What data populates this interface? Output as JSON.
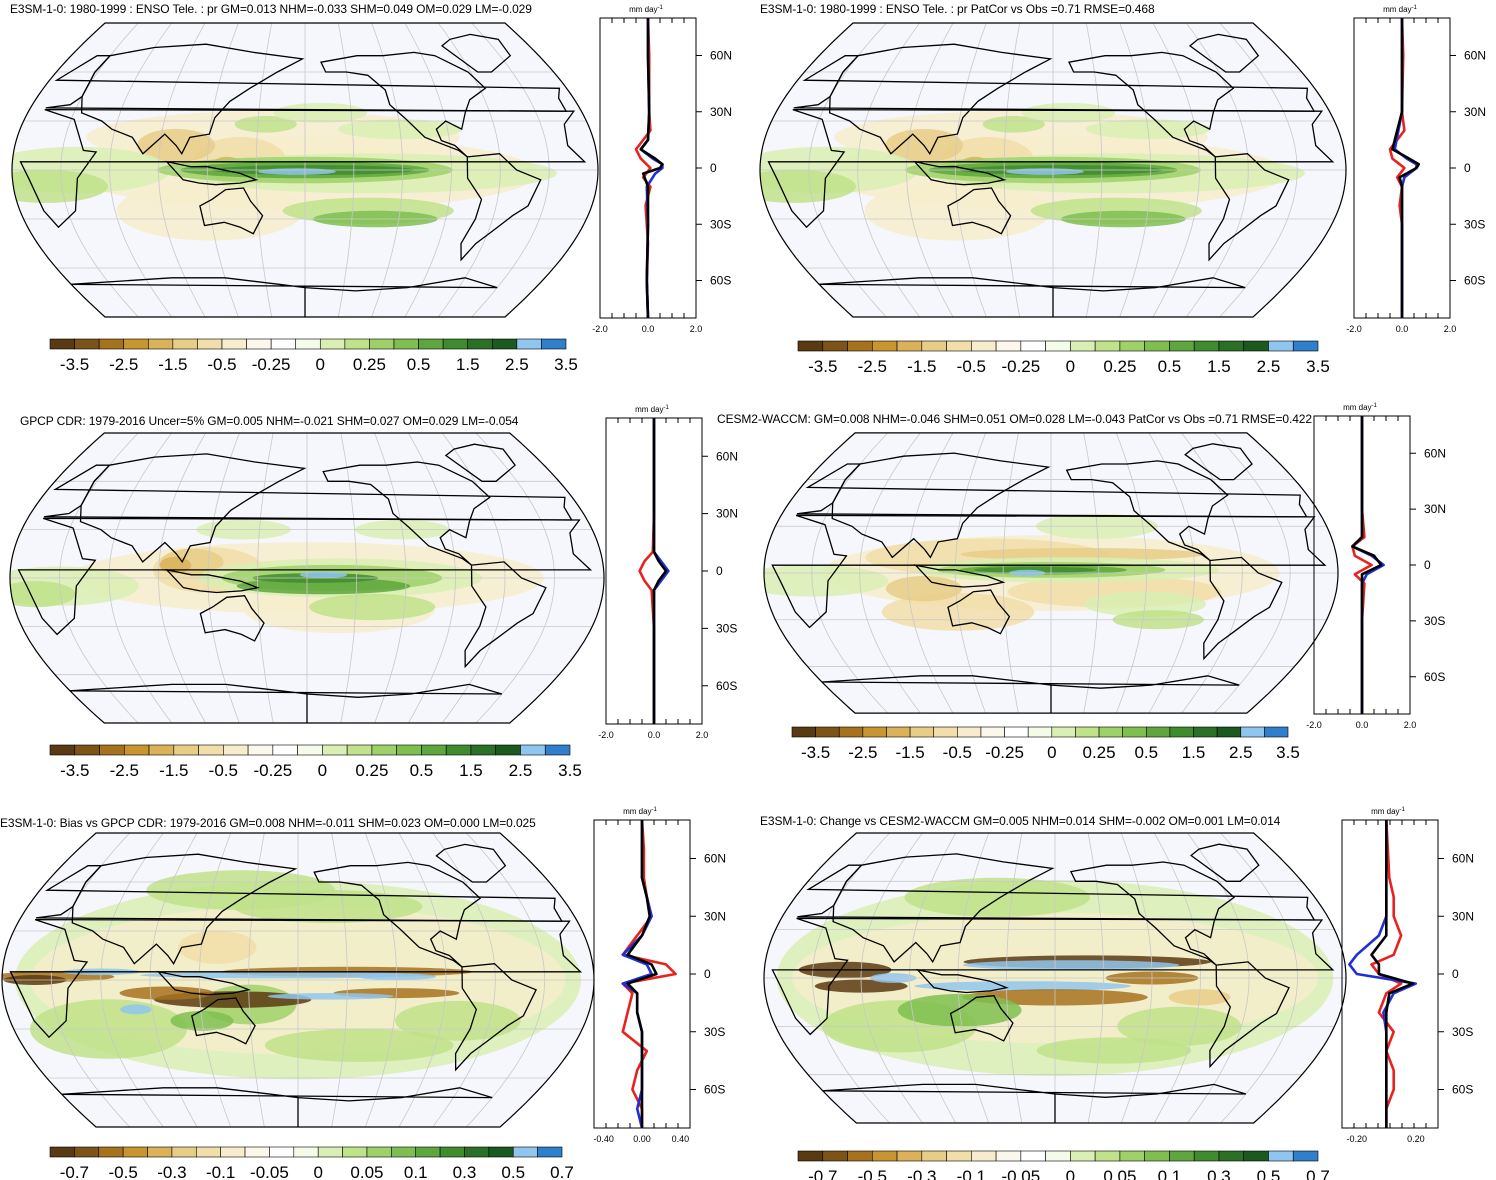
{
  "units": "mm day",
  "units_exp": "-1",
  "lat_ticks": [
    "60N",
    "30N",
    "0",
    "30S",
    "60S"
  ],
  "lat_values": [
    60,
    30,
    0,
    -30,
    -60
  ],
  "colorbars": {
    "a": {
      "labels": [
        "-3.5",
        "-2.5",
        "-1.5",
        "-0.5",
        "-0.25",
        "0",
        "0.25",
        "0.5",
        "1.5",
        "2.5",
        "3.5"
      ],
      "colors": [
        "#5a3a12",
        "#7d5418",
        "#a6721e",
        "#c9952f",
        "#dbb25a",
        "#e8cd87",
        "#f1dea8",
        "#f7edcd",
        "#fbf7ea",
        "#ffffff",
        "#f4fbe9",
        "#d9efb3",
        "#bfe28a",
        "#9fd169",
        "#7fbf50",
        "#5ea63d",
        "#3f8c2f",
        "#2a7026",
        "#1b5a1e",
        "#8fc6ef",
        "#2f7fcc"
      ]
    },
    "b": {
      "labels": [
        "-0.7",
        "-0.5",
        "-0.3",
        "-0.1",
        "-0.05",
        "0",
        "0.05",
        "0.1",
        "0.3",
        "0.5",
        "0.7"
      ],
      "colors": [
        "#5a3a12",
        "#7d5418",
        "#a6721e",
        "#c9952f",
        "#dbb25a",
        "#e8cd87",
        "#f1dea8",
        "#f7edcd",
        "#fbf7ea",
        "#ffffff",
        "#f4fbe9",
        "#d9efb3",
        "#bfe28a",
        "#9fd169",
        "#7fbf50",
        "#5ea63d",
        "#3f8c2f",
        "#2a7026",
        "#1b5a1e",
        "#8fc6ef",
        "#2f7fcc"
      ]
    }
  },
  "line_colors": {
    "red": "#e8231f",
    "blue": "#1f2fd6",
    "black": "#000000"
  },
  "panels": [
    {
      "id": "p1",
      "title": "E3SM-1-0: 1980-1999 : ENSO Tele. : pr GM=0.013 NHM=-0.033 SHM=0.049 OM=0.029 LM=-0.029",
      "cbar": "a",
      "xticks": [
        "-2.0",
        "0.0",
        "2.0"
      ],
      "xrange": [
        -2,
        2
      ],
      "style": "enso",
      "zonal": {
        "red": [
          [
            80,
            0
          ],
          [
            60,
            0.05
          ],
          [
            40,
            0.05
          ],
          [
            30,
            0.05
          ],
          [
            20,
            0.1
          ],
          [
            10,
            -0.5
          ],
          [
            5,
            -0.3
          ],
          [
            0,
            0.1
          ],
          [
            -5,
            -0.2
          ],
          [
            -10,
            0.1
          ],
          [
            -20,
            -0.1
          ],
          [
            -30,
            -0.05
          ],
          [
            -40,
            0
          ],
          [
            -60,
            -0.05
          ],
          [
            -80,
            0
          ]
        ],
        "blue": [
          [
            80,
            0
          ],
          [
            60,
            0
          ],
          [
            30,
            0.05
          ],
          [
            15,
            0
          ],
          [
            10,
            -0.3
          ],
          [
            5,
            0.2
          ],
          [
            2,
            0.6
          ],
          [
            0,
            0.6
          ],
          [
            -3,
            0.3
          ],
          [
            -10,
            -0.05
          ],
          [
            -30,
            0
          ],
          [
            -60,
            -0.05
          ],
          [
            -80,
            0
          ]
        ],
        "black": [
          [
            80,
            0
          ],
          [
            60,
            0
          ],
          [
            30,
            0.05
          ],
          [
            15,
            0
          ],
          [
            10,
            -0.3
          ],
          [
            5,
            0.3
          ],
          [
            2,
            0.6
          ],
          [
            0,
            0.5
          ],
          [
            -3,
            -0.2
          ],
          [
            -10,
            0
          ],
          [
            -30,
            0
          ],
          [
            -60,
            -0.05
          ],
          [
            -80,
            0
          ]
        ]
      }
    },
    {
      "id": "p2",
      "title": "E3SM-1-0: 1980-1999 : ENSO Tele. : pr PatCor vs Obs =0.71 RMSE=0.468",
      "cbar": "a",
      "xticks": [
        "-2.0",
        "0.0",
        "2.0"
      ],
      "xrange": [
        -2,
        2
      ],
      "style": "enso",
      "zonal": {
        "red": [
          [
            80,
            0
          ],
          [
            60,
            0.05
          ],
          [
            30,
            0
          ],
          [
            20,
            0.1
          ],
          [
            10,
            -0.5
          ],
          [
            5,
            -0.4
          ],
          [
            0,
            0.1
          ],
          [
            -5,
            -0.2
          ],
          [
            -10,
            0
          ],
          [
            -20,
            -0.1
          ],
          [
            -30,
            0
          ],
          [
            -60,
            0
          ],
          [
            -80,
            0
          ]
        ],
        "blue": [
          [
            80,
            0
          ],
          [
            60,
            0
          ],
          [
            30,
            0
          ],
          [
            10,
            -0.3
          ],
          [
            5,
            0.2
          ],
          [
            2,
            0.6
          ],
          [
            0,
            0.6
          ],
          [
            -5,
            0.1
          ],
          [
            -10,
            0
          ],
          [
            -30,
            0
          ],
          [
            -80,
            0
          ]
        ],
        "black": [
          [
            80,
            0
          ],
          [
            60,
            0
          ],
          [
            30,
            0
          ],
          [
            10,
            -0.4
          ],
          [
            5,
            0.3
          ],
          [
            2,
            0.7
          ],
          [
            0,
            0.6
          ],
          [
            -5,
            -0.1
          ],
          [
            -10,
            0
          ],
          [
            -30,
            0
          ],
          [
            -80,
            0
          ]
        ]
      }
    },
    {
      "id": "p3",
      "title": "GPCP CDR: 1979-2016 Uncer=5% GM=0.005 NHM=-0.021 SHM=0.027 OM=0.029 LM=-0.054",
      "cbar": "a",
      "xticks": [
        "-2.0",
        "0.0",
        "2.0"
      ],
      "xrange": [
        -2,
        2
      ],
      "style": "gpcp",
      "zonal": {
        "red": [
          [
            80,
            0
          ],
          [
            60,
            0
          ],
          [
            30,
            0
          ],
          [
            10,
            -0.05
          ],
          [
            5,
            -0.4
          ],
          [
            0,
            -0.6
          ],
          [
            -5,
            -0.4
          ],
          [
            -10,
            -0.1
          ],
          [
            -30,
            0
          ],
          [
            -60,
            0
          ],
          [
            -80,
            0
          ]
        ],
        "blue": [
          [
            80,
            0
          ],
          [
            60,
            0
          ],
          [
            30,
            0
          ],
          [
            10,
            0
          ],
          [
            5,
            0.3
          ],
          [
            0,
            0.6
          ],
          [
            -5,
            0.3
          ],
          [
            -10,
            0
          ],
          [
            -30,
            0
          ],
          [
            -80,
            0
          ]
        ],
        "black": [
          [
            80,
            0
          ],
          [
            60,
            0
          ],
          [
            30,
            0
          ],
          [
            10,
            0
          ],
          [
            5,
            0.2
          ],
          [
            0,
            0.5
          ],
          [
            -5,
            0.2
          ],
          [
            -10,
            0
          ],
          [
            -30,
            0
          ],
          [
            -80,
            0
          ]
        ]
      }
    },
    {
      "id": "p4",
      "title": "CESM2-WACCM: GM=0.008 NHM=-0.046 SHM=0.051 OM=0.028 LM=-0.043 PatCor vs Obs =0.71 RMSE=0.422",
      "cbar": "a",
      "xticks": [
        "-2.0",
        "0.0",
        "2.0"
      ],
      "xrange": [
        -2,
        2
      ],
      "style": "cesm",
      "zonal": {
        "red": [
          [
            80,
            0
          ],
          [
            60,
            0
          ],
          [
            30,
            0
          ],
          [
            15,
            0.1
          ],
          [
            10,
            -0.4
          ],
          [
            5,
            -0.3
          ],
          [
            0,
            0.4
          ],
          [
            -5,
            -0.3
          ],
          [
            -10,
            0.1
          ],
          [
            -30,
            0
          ],
          [
            -60,
            0
          ],
          [
            -80,
            0
          ]
        ],
        "blue": [
          [
            80,
            0
          ],
          [
            60,
            0
          ],
          [
            30,
            0
          ],
          [
            15,
            0
          ],
          [
            10,
            -0.4
          ],
          [
            5,
            0.4
          ],
          [
            0,
            0.9
          ],
          [
            -5,
            0.2
          ],
          [
            -10,
            0
          ],
          [
            -30,
            0
          ],
          [
            -80,
            0
          ]
        ],
        "black": [
          [
            80,
            0
          ],
          [
            60,
            0
          ],
          [
            30,
            0
          ],
          [
            15,
            0
          ],
          [
            10,
            -0.4
          ],
          [
            5,
            0.5
          ],
          [
            0,
            0.8
          ],
          [
            -5,
            0
          ],
          [
            -10,
            0
          ],
          [
            -30,
            0
          ],
          [
            -80,
            0
          ]
        ]
      }
    },
    {
      "id": "p5",
      "title": "E3SM-1-0: Bias vs GPCP CDR: 1979-2016 GM=0.008 NHM=-0.011 SHM=0.023 OM=0.000 LM=0.025",
      "cbar": "b",
      "xticks": [
        "-0.40",
        "0.00",
        "0.40"
      ],
      "xrange": [
        -0.5,
        0.5
      ],
      "style": "bias",
      "zonal": {
        "red": [
          [
            80,
            0
          ],
          [
            65,
            0.02
          ],
          [
            50,
            0.02
          ],
          [
            40,
            0.05
          ],
          [
            30,
            0.1
          ],
          [
            20,
            -0.05
          ],
          [
            10,
            -0.2
          ],
          [
            5,
            0.25
          ],
          [
            0,
            0.35
          ],
          [
            -5,
            -0.2
          ],
          [
            -10,
            -0.1
          ],
          [
            -20,
            -0.15
          ],
          [
            -30,
            -0.2
          ],
          [
            -40,
            0.05
          ],
          [
            -50,
            -0.05
          ],
          [
            -60,
            -0.1
          ],
          [
            -70,
            0
          ],
          [
            -80,
            0
          ]
        ],
        "blue": [
          [
            80,
            0
          ],
          [
            65,
            0
          ],
          [
            50,
            0
          ],
          [
            40,
            0.05
          ],
          [
            30,
            0.1
          ],
          [
            20,
            0
          ],
          [
            10,
            -0.2
          ],
          [
            5,
            0.05
          ],
          [
            0,
            0.1
          ],
          [
            -5,
            -0.2
          ],
          [
            -10,
            -0.05
          ],
          [
            -20,
            -0.05
          ],
          [
            -30,
            0
          ],
          [
            -60,
            0
          ],
          [
            -70,
            -0.05
          ],
          [
            -80,
            0
          ]
        ],
        "black": [
          [
            80,
            0
          ],
          [
            65,
            0
          ],
          [
            50,
            0
          ],
          [
            40,
            0.05
          ],
          [
            30,
            0.08
          ],
          [
            20,
            0
          ],
          [
            10,
            -0.15
          ],
          [
            5,
            0.1
          ],
          [
            0,
            0.15
          ],
          [
            -5,
            -0.15
          ],
          [
            -10,
            -0.05
          ],
          [
            -20,
            -0.05
          ],
          [
            -30,
            0
          ],
          [
            -60,
            0
          ],
          [
            -80,
            0
          ]
        ]
      }
    },
    {
      "id": "p6",
      "title": "E3SM-1-0: Change vs CESM2-WACCM GM=0.005 NHM=0.014 SHM=-0.002 OM=0.001 LM=0.014",
      "cbar": "b",
      "xticks": [
        "-0.20",
        "0.20"
      ],
      "xrange": [
        -0.3,
        0.35
      ],
      "style": "change",
      "zonal": {
        "red": [
          [
            80,
            0
          ],
          [
            65,
            0.01
          ],
          [
            50,
            0.02
          ],
          [
            40,
            0.05
          ],
          [
            30,
            0.05
          ],
          [
            20,
            0.1
          ],
          [
            10,
            0.05
          ],
          [
            5,
            -0.1
          ],
          [
            0,
            -0.05
          ],
          [
            -5,
            0.1
          ],
          [
            -10,
            0
          ],
          [
            -20,
            -0.05
          ],
          [
            -30,
            0.05
          ],
          [
            -40,
            0
          ],
          [
            -50,
            0.05
          ],
          [
            -60,
            0.05
          ],
          [
            -70,
            0
          ],
          [
            -80,
            0
          ]
        ],
        "blue": [
          [
            80,
            0
          ],
          [
            65,
            0
          ],
          [
            50,
            0
          ],
          [
            40,
            0
          ],
          [
            30,
            0
          ],
          [
            20,
            -0.05
          ],
          [
            10,
            -0.2
          ],
          [
            5,
            -0.25
          ],
          [
            0,
            -0.2
          ],
          [
            -5,
            0.2
          ],
          [
            -10,
            0.05
          ],
          [
            -20,
            -0.02
          ],
          [
            -30,
            0
          ],
          [
            -60,
            0
          ],
          [
            -80,
            0
          ]
        ],
        "black": [
          [
            80,
            0
          ],
          [
            65,
            0
          ],
          [
            50,
            0
          ],
          [
            40,
            0
          ],
          [
            30,
            0
          ],
          [
            20,
            0
          ],
          [
            10,
            -0.1
          ],
          [
            5,
            -0.05
          ],
          [
            0,
            -0.05
          ],
          [
            -5,
            0.18
          ],
          [
            -10,
            0.02
          ],
          [
            -20,
            0
          ],
          [
            -30,
            0
          ],
          [
            -60,
            0
          ],
          [
            -80,
            0
          ]
        ]
      }
    }
  ]
}
